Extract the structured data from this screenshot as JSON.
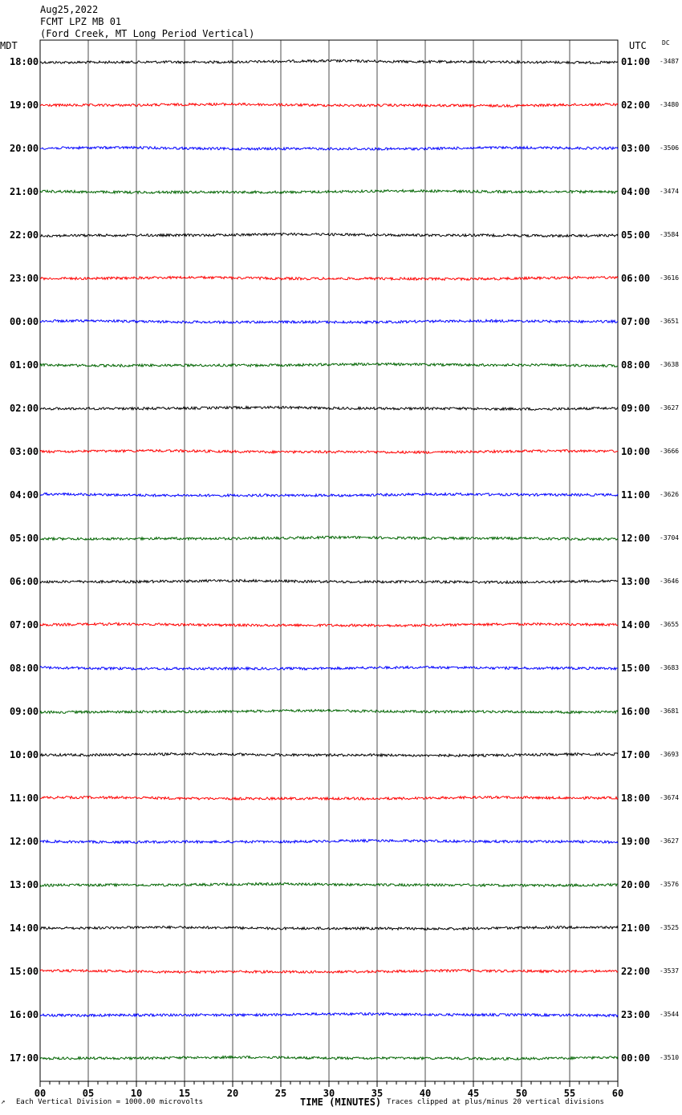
{
  "header": {
    "date": "Aug25,2022",
    "station": "FCMT LPZ MB 01",
    "description": "(Ford Creek, MT Long Period Vertical)"
  },
  "left_zone": "MDT",
  "right_zone": "UTC",
  "dc_header": "DC",
  "footer_left": "Each Vertical Division = 1000.00 microvolts",
  "footer_right": "Traces clipped at plus/minus 20 vertical divisions",
  "footer_corner": "↗",
  "chart_data": {
    "type": "line",
    "xlabel": "TIME (MINUTES)",
    "x_ticks": [
      "00",
      "05",
      "10",
      "15",
      "20",
      "25",
      "30",
      "35",
      "40",
      "45",
      "50",
      "55",
      "60"
    ],
    "xlim": [
      0,
      60
    ],
    "trace_colors": [
      "#000000",
      "#ff0000",
      "#0000ff",
      "#006400"
    ],
    "rows": [
      {
        "local": "18:00",
        "utc": "01:00",
        "dc": "-3487"
      },
      {
        "local": "19:00",
        "utc": "02:00",
        "dc": "-3480"
      },
      {
        "local": "20:00",
        "utc": "03:00",
        "dc": "-3506"
      },
      {
        "local": "21:00",
        "utc": "04:00",
        "dc": "-3474"
      },
      {
        "local": "22:00",
        "utc": "05:00",
        "dc": "-3584"
      },
      {
        "local": "23:00",
        "utc": "06:00",
        "dc": "-3616"
      },
      {
        "local": "00:00",
        "utc": "07:00",
        "dc": "-3651"
      },
      {
        "local": "01:00",
        "utc": "08:00",
        "dc": "-3638"
      },
      {
        "local": "02:00",
        "utc": "09:00",
        "dc": "-3627"
      },
      {
        "local": "03:00",
        "utc": "10:00",
        "dc": "-3666"
      },
      {
        "local": "04:00",
        "utc": "11:00",
        "dc": "-3626"
      },
      {
        "local": "05:00",
        "utc": "12:00",
        "dc": "-3704"
      },
      {
        "local": "06:00",
        "utc": "13:00",
        "dc": "-3646"
      },
      {
        "local": "07:00",
        "utc": "14:00",
        "dc": "-3655"
      },
      {
        "local": "08:00",
        "utc": "15:00",
        "dc": "-3683"
      },
      {
        "local": "09:00",
        "utc": "16:00",
        "dc": "-3681"
      },
      {
        "local": "10:00",
        "utc": "17:00",
        "dc": "-3693"
      },
      {
        "local": "11:00",
        "utc": "18:00",
        "dc": "-3674"
      },
      {
        "local": "12:00",
        "utc": "19:00",
        "dc": "-3627"
      },
      {
        "local": "13:00",
        "utc": "20:00",
        "dc": "-3576"
      },
      {
        "local": "14:00",
        "utc": "21:00",
        "dc": "-3525"
      },
      {
        "local": "15:00",
        "utc": "22:00",
        "dc": "-3537"
      },
      {
        "local": "16:00",
        "utc": "23:00",
        "dc": "-3544"
      },
      {
        "local": "17:00",
        "utc": "00:00",
        "dc": "-3510"
      }
    ]
  }
}
